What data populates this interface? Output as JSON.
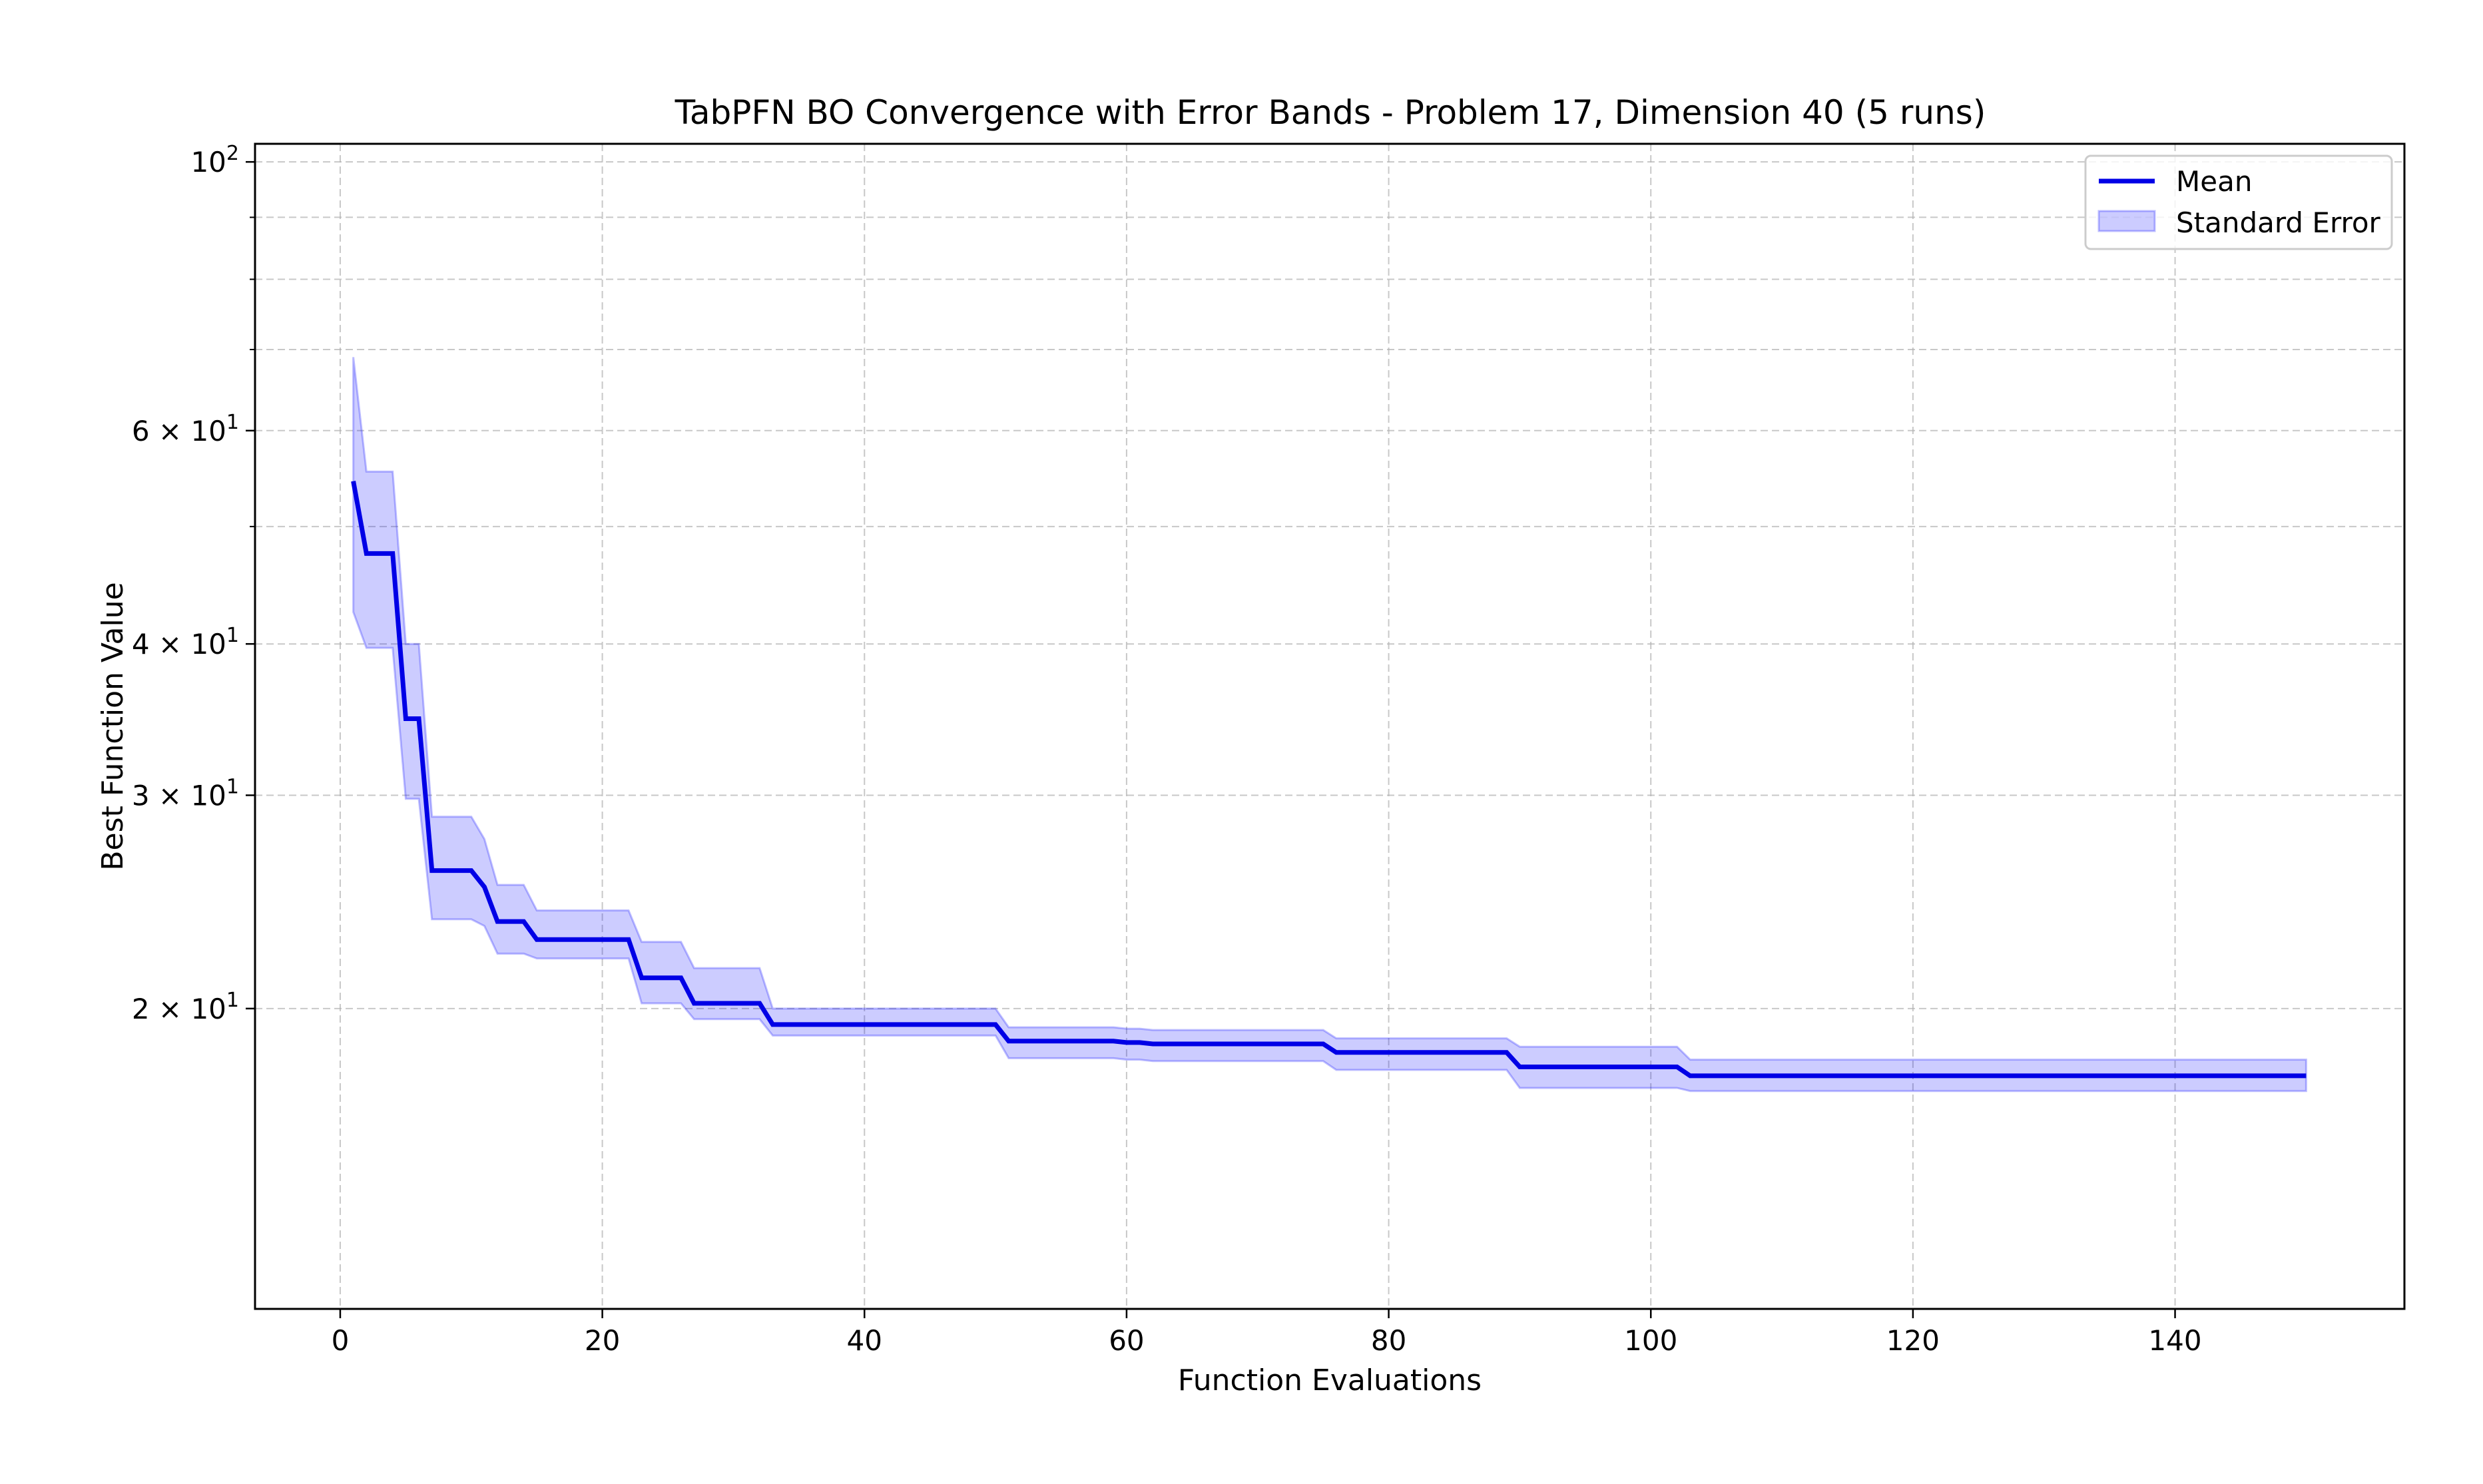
{
  "chart_data": {
    "type": "line",
    "title": "TabPFN BO Convergence with Error Bands - Problem 17, Dimension 40 (5 runs)",
    "xlabel": "Function Evaluations",
    "ylabel": "Best Function Value",
    "xlim": [
      -6.5,
      157.5
    ],
    "ylim": [
      11.3,
      103.5
    ],
    "yscale": "log",
    "grid": true,
    "x_ticks": [
      0,
      20,
      40,
      60,
      80,
      100,
      120,
      140
    ],
    "y_ticks": [
      {
        "value": 100,
        "base": "10",
        "exp": "2",
        "mant": ""
      },
      {
        "value": 60,
        "base": "10",
        "exp": "1",
        "mant": "6 × "
      },
      {
        "value": 40,
        "base": "10",
        "exp": "1",
        "mant": "4 × "
      },
      {
        "value": 30,
        "base": "10",
        "exp": "1",
        "mant": "3 × "
      },
      {
        "value": 20,
        "base": "10",
        "exp": "1",
        "mant": "2 × "
      }
    ],
    "y_minor_ticks": [
      50,
      70,
      80,
      90
    ],
    "legend": {
      "placement": "top-right"
    },
    "colors": {
      "mean": "#0000e6",
      "band": "#0000ff",
      "grid": "#b0b0b0"
    },
    "series": [
      {
        "name": "Mean",
        "kind": "line",
        "points": [
          [
            1,
            54.5
          ],
          [
            2,
            47.5
          ],
          [
            4,
            47.5
          ],
          [
            5,
            34.7
          ],
          [
            6,
            34.7
          ],
          [
            7,
            26.0
          ],
          [
            10,
            26.0
          ],
          [
            11,
            25.2
          ],
          [
            12,
            23.6
          ],
          [
            14,
            23.6
          ],
          [
            15,
            22.8
          ],
          [
            22,
            22.8
          ],
          [
            23,
            21.2
          ],
          [
            26,
            21.2
          ],
          [
            27,
            20.2
          ],
          [
            32,
            20.2
          ],
          [
            33,
            19.4
          ],
          [
            50,
            19.4
          ],
          [
            51,
            18.8
          ],
          [
            59,
            18.8
          ],
          [
            60,
            18.75
          ],
          [
            61,
            18.75
          ],
          [
            62,
            18.7
          ],
          [
            75,
            18.7
          ],
          [
            76,
            18.4
          ],
          [
            89,
            18.4
          ],
          [
            90,
            17.9
          ],
          [
            102,
            17.9
          ],
          [
            103,
            17.6
          ],
          [
            150,
            17.6
          ]
        ]
      },
      {
        "name": "Standard Error",
        "kind": "band",
        "upper": [
          [
            1,
            69.0
          ],
          [
            2,
            55.5
          ],
          [
            4,
            55.5
          ],
          [
            5,
            40.0
          ],
          [
            6,
            40.0
          ],
          [
            7,
            28.8
          ],
          [
            10,
            28.8
          ],
          [
            11,
            27.6
          ],
          [
            12,
            25.3
          ],
          [
            14,
            25.3
          ],
          [
            15,
            24.1
          ],
          [
            22,
            24.1
          ],
          [
            23,
            22.7
          ],
          [
            26,
            22.7
          ],
          [
            27,
            21.6
          ],
          [
            32,
            21.6
          ],
          [
            33,
            20.0
          ],
          [
            50,
            20.0
          ],
          [
            51,
            19.3
          ],
          [
            59,
            19.3
          ],
          [
            60,
            19.25
          ],
          [
            61,
            19.25
          ],
          [
            62,
            19.2
          ],
          [
            75,
            19.2
          ],
          [
            76,
            18.9
          ],
          [
            89,
            18.9
          ],
          [
            90,
            18.6
          ],
          [
            102,
            18.6
          ],
          [
            103,
            18.15
          ],
          [
            150,
            18.15
          ]
        ],
        "lower": [
          [
            1,
            42.5
          ],
          [
            2,
            39.7
          ],
          [
            4,
            39.7
          ],
          [
            5,
            29.8
          ],
          [
            6,
            29.8
          ],
          [
            7,
            23.7
          ],
          [
            10,
            23.7
          ],
          [
            11,
            23.4
          ],
          [
            12,
            22.2
          ],
          [
            14,
            22.2
          ],
          [
            15,
            22.0
          ],
          [
            22,
            22.0
          ],
          [
            23,
            20.2
          ],
          [
            26,
            20.2
          ],
          [
            27,
            19.6
          ],
          [
            32,
            19.6
          ],
          [
            33,
            19.0
          ],
          [
            50,
            19.0
          ],
          [
            51,
            18.2
          ],
          [
            59,
            18.2
          ],
          [
            60,
            18.15
          ],
          [
            61,
            18.15
          ],
          [
            62,
            18.1
          ],
          [
            75,
            18.1
          ],
          [
            76,
            17.8
          ],
          [
            89,
            17.8
          ],
          [
            90,
            17.2
          ],
          [
            102,
            17.2
          ],
          [
            103,
            17.1
          ],
          [
            150,
            17.1
          ]
        ]
      }
    ]
  }
}
